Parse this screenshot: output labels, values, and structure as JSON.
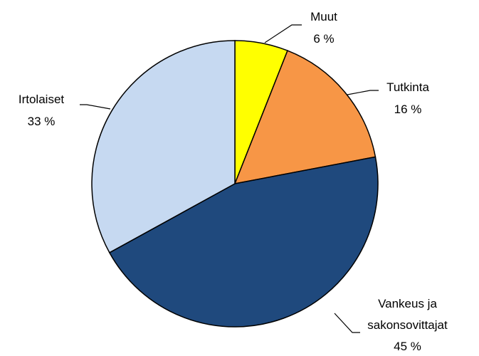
{
  "chart_data": {
    "type": "pie",
    "categories": [
      "Muut",
      "Tutkinta",
      "Vankeus ja sakonsovittajat",
      "Irtolaiset"
    ],
    "values": [
      6,
      16,
      45,
      33
    ],
    "value_labels": [
      "6 %",
      "16 %",
      "45 %",
      "33 %"
    ],
    "colors": [
      "#ffff00",
      "#f79646",
      "#1f497d",
      "#c6d9f1"
    ]
  }
}
